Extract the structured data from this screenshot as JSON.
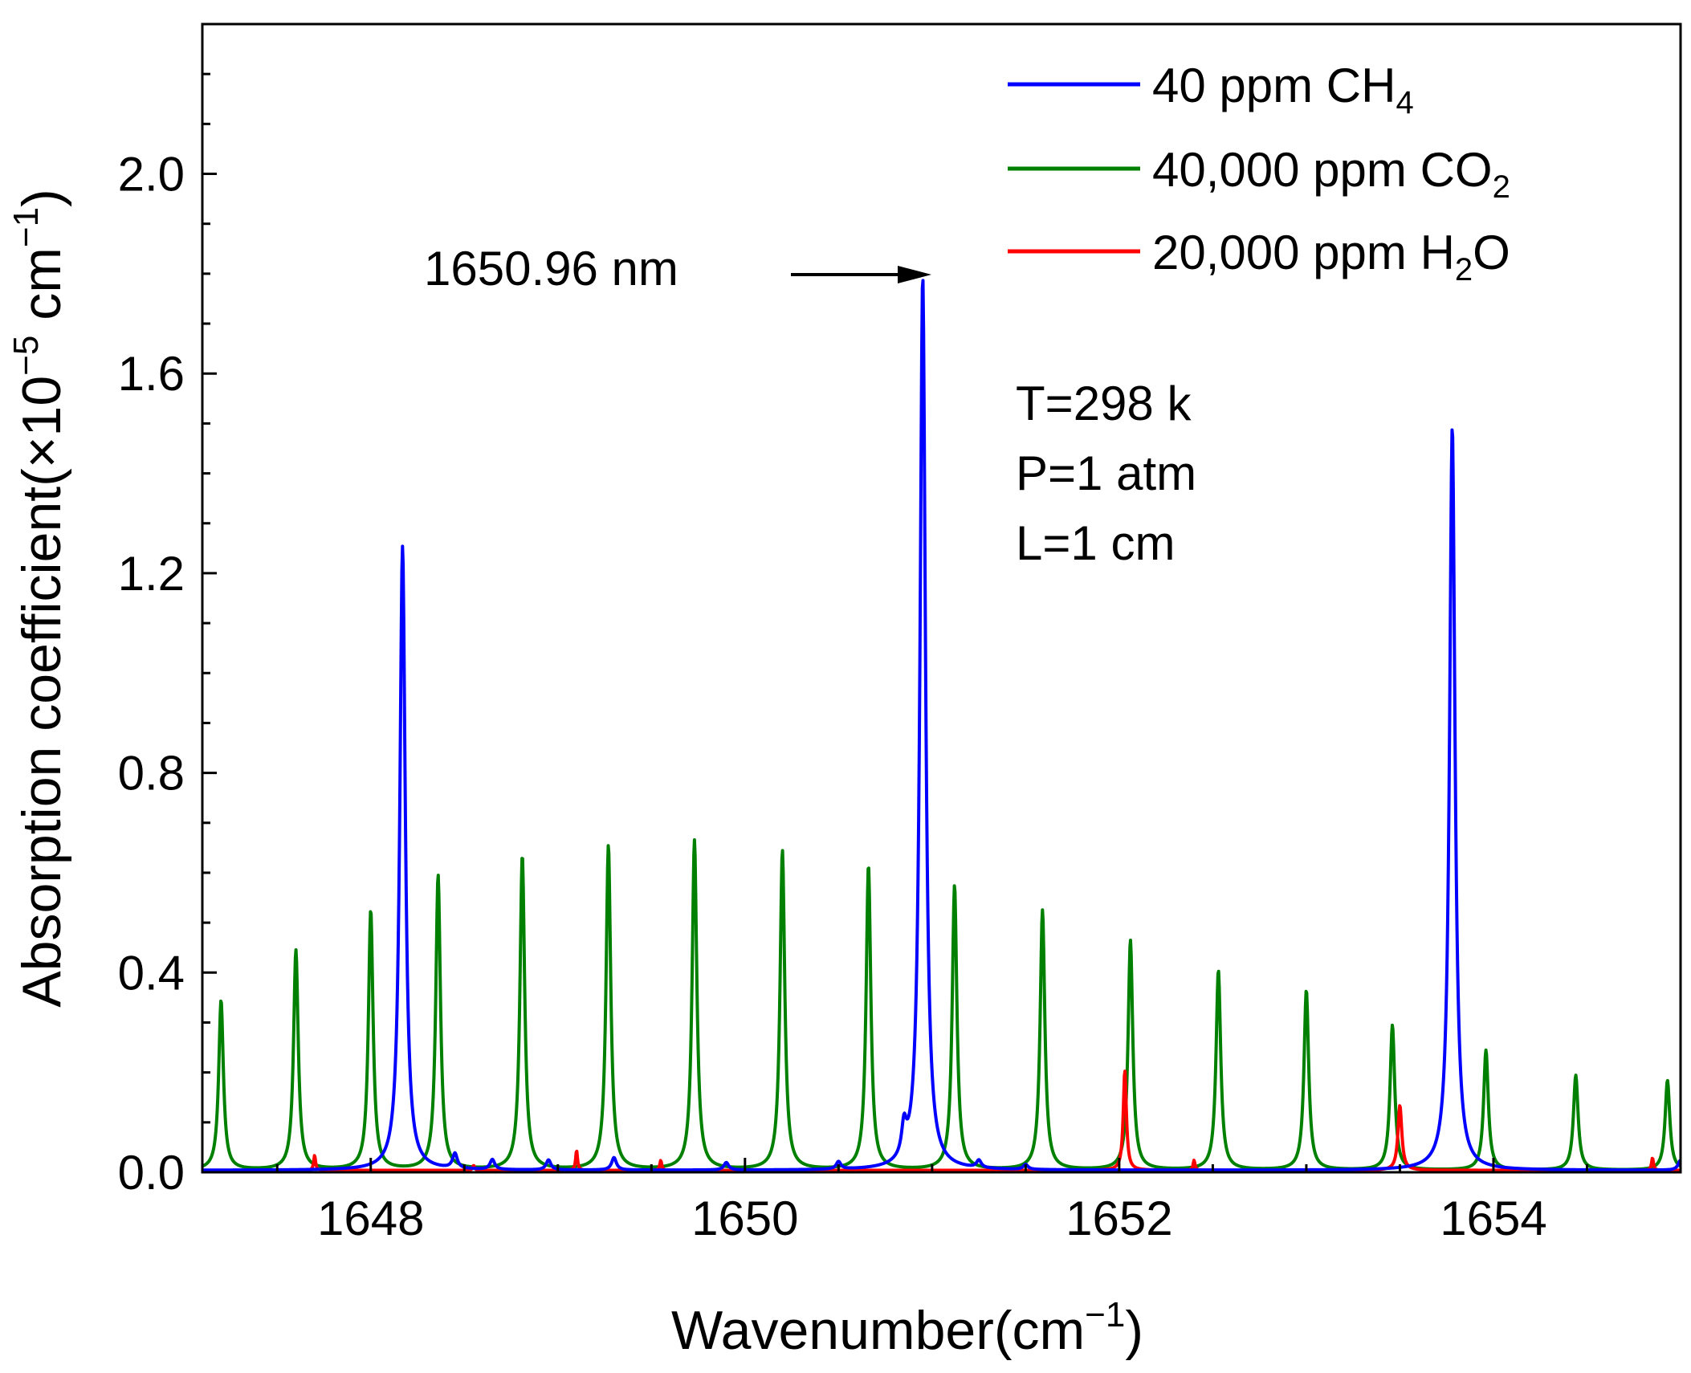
{
  "chart_data": {
    "type": "line",
    "xlabel": "Wavenumber(cm",
    "xlabel_sup": "−1",
    "xlabel_close": ")",
    "ylabel": "Absorption coefficient(×10",
    "ylabel_sup1": "−5",
    "ylabel_mid": " cm",
    "ylabel_sup2": "−1",
    "ylabel_close": ")",
    "xlim": [
      1647.1,
      1655.0
    ],
    "ylim": [
      0.0,
      2.3
    ],
    "xticks": [
      1648,
      1650,
      1652,
      1654
    ],
    "xtick_labels": [
      "1648",
      "1650",
      "1652",
      "1654"
    ],
    "yticks": [
      0.0,
      0.4,
      0.8,
      1.2,
      1.6,
      2.0
    ],
    "ytick_labels": [
      "0.0",
      "0.4",
      "0.8",
      "1.2",
      "1.6",
      "2.0"
    ],
    "legend_position": "top-right",
    "series": [
      {
        "name": "40 ppm CH",
        "name_sub": "4",
        "name_tail": "",
        "color": "#0000ff",
        "peaks": [
          {
            "x": 1648.17,
            "y": 1.25,
            "w": 0.035
          },
          {
            "x": 1650.95,
            "y": 1.79,
            "w": 0.035
          },
          {
            "x": 1653.78,
            "y": 1.49,
            "w": 0.035
          },
          {
            "x": 1650.85,
            "y": 0.06,
            "w": 0.03
          },
          {
            "x": 1649.3,
            "y": 0.025,
            "w": 0.03
          },
          {
            "x": 1648.45,
            "y": 0.03,
            "w": 0.03
          },
          {
            "x": 1648.65,
            "y": 0.02,
            "w": 0.03
          },
          {
            "x": 1648.95,
            "y": 0.02,
            "w": 0.03
          },
          {
            "x": 1649.9,
            "y": 0.015,
            "w": 0.03
          },
          {
            "x": 1650.5,
            "y": 0.015,
            "w": 0.03
          },
          {
            "x": 1651.25,
            "y": 0.015,
            "w": 0.03
          },
          {
            "x": 1651.5,
            "y": 0.01,
            "w": 0.03
          },
          {
            "x": 1655.0,
            "y": 0.02,
            "w": 0.03
          }
        ]
      },
      {
        "name": "40,000 ppm CO",
        "name_sub": "2",
        "name_tail": "",
        "color": "#008000",
        "peaks": [
          {
            "x": 1647.2,
            "y": 0.34,
            "w": 0.03
          },
          {
            "x": 1647.6,
            "y": 0.44,
            "w": 0.03
          },
          {
            "x": 1648.0,
            "y": 0.52,
            "w": 0.03
          },
          {
            "x": 1648.36,
            "y": 0.59,
            "w": 0.03
          },
          {
            "x": 1648.81,
            "y": 0.63,
            "w": 0.03
          },
          {
            "x": 1649.27,
            "y": 0.65,
            "w": 0.03
          },
          {
            "x": 1649.73,
            "y": 0.66,
            "w": 0.03
          },
          {
            "x": 1650.2,
            "y": 0.64,
            "w": 0.03
          },
          {
            "x": 1650.66,
            "y": 0.61,
            "w": 0.03
          },
          {
            "x": 1651.12,
            "y": 0.57,
            "w": 0.03
          },
          {
            "x": 1651.59,
            "y": 0.52,
            "w": 0.03
          },
          {
            "x": 1652.06,
            "y": 0.46,
            "w": 0.03
          },
          {
            "x": 1652.53,
            "y": 0.4,
            "w": 0.03
          },
          {
            "x": 1653.0,
            "y": 0.36,
            "w": 0.03
          },
          {
            "x": 1653.46,
            "y": 0.29,
            "w": 0.03
          },
          {
            "x": 1653.96,
            "y": 0.24,
            "w": 0.03
          },
          {
            "x": 1654.44,
            "y": 0.19,
            "w": 0.03
          },
          {
            "x": 1654.93,
            "y": 0.18,
            "w": 0.03
          }
        ]
      },
      {
        "name": "20,000 ppm H",
        "name_sub": "2",
        "name_tail": "O",
        "color": "#ff0000",
        "peaks": [
          {
            "x": 1652.03,
            "y": 0.2,
            "w": 0.02
          },
          {
            "x": 1653.5,
            "y": 0.13,
            "w": 0.025
          },
          {
            "x": 1647.7,
            "y": 0.03,
            "w": 0.012
          },
          {
            "x": 1649.1,
            "y": 0.04,
            "w": 0.012
          },
          {
            "x": 1649.55,
            "y": 0.02,
            "w": 0.012
          },
          {
            "x": 1652.4,
            "y": 0.02,
            "w": 0.012
          },
          {
            "x": 1654.85,
            "y": 0.025,
            "w": 0.012
          },
          {
            "x": 1648.55,
            "y": 0.01,
            "w": 0.012
          }
        ]
      }
    ],
    "annotations": {
      "peak_label": "1650.96 nm",
      "conditions": [
        "T=298 k",
        "P=1 atm",
        "L=1 cm"
      ]
    }
  }
}
